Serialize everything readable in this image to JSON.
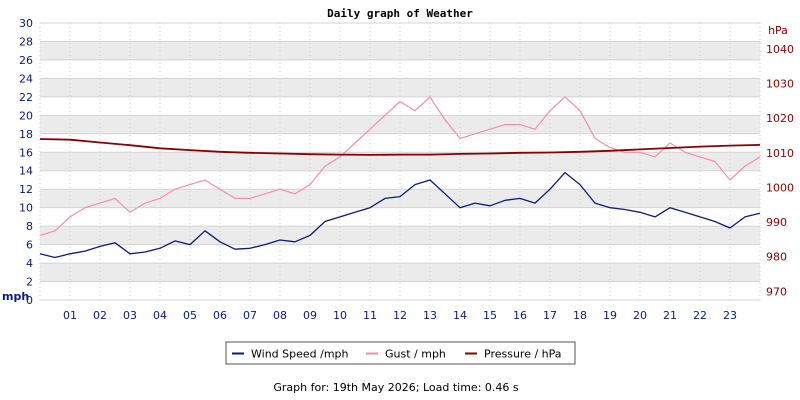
{
  "chart_data": {
    "type": "line",
    "title": "Daily graph of Weather",
    "footer": "Graph for: 19th May 2026; Load time: 0.46 s",
    "left_axis": {
      "unit_label": "mph",
      "min": 0,
      "max": 30,
      "step": 2,
      "ticks": [
        "0",
        "2",
        "4",
        "6",
        "8",
        "10",
        "12",
        "14",
        "16",
        "18",
        "20",
        "22",
        "24",
        "26",
        "28",
        "30"
      ]
    },
    "right_axis": {
      "unit_label": "hPa",
      "min": 967.5,
      "max": 1047.5,
      "ticks": [
        "970",
        "980",
        "990",
        "1000",
        "1010",
        "1020",
        "1030",
        "1040"
      ]
    },
    "x_axis": {
      "min": 0,
      "max": 24,
      "ticks": [
        "01",
        "02",
        "03",
        "04",
        "05",
        "06",
        "07",
        "08",
        "09",
        "10",
        "11",
        "12",
        "13",
        "14",
        "15",
        "16",
        "17",
        "18",
        "19",
        "20",
        "21",
        "22",
        "23"
      ]
    },
    "grid": true,
    "legend_position": "bottom",
    "colors": {
      "wind": "#0b1a7e",
      "gust": "#f48cb0",
      "pressure": "#8b0000",
      "axis_left": "#0b1a7e",
      "axis_right": "#8b0000",
      "band": "#ebebeb"
    },
    "series": [
      {
        "name": "Wind Speed /mph",
        "axis": "left",
        "color": "#0b1a7e",
        "x": [
          0,
          0.5,
          1,
          1.5,
          2,
          2.5,
          3,
          3.5,
          4,
          4.5,
          5,
          5.5,
          6,
          6.5,
          7,
          7.5,
          8,
          8.5,
          9,
          9.5,
          10,
          10.5,
          11,
          11.5,
          12,
          12.5,
          13,
          13.5,
          14,
          14.5,
          15,
          15.5,
          16,
          16.5,
          17,
          17.5,
          18,
          18.5,
          19,
          19.5,
          20,
          20.5,
          21,
          21.5,
          22,
          22.5,
          23,
          23.5,
          24
        ],
        "values": [
          5.0,
          4.6,
          5.0,
          5.3,
          5.8,
          6.2,
          5.0,
          5.2,
          5.6,
          6.4,
          6.0,
          7.5,
          6.3,
          5.5,
          5.6,
          6.0,
          6.5,
          6.3,
          7.0,
          8.5,
          9.0,
          9.5,
          10.0,
          11.0,
          11.2,
          12.5,
          13.0,
          11.5,
          10.0,
          10.5,
          10.2,
          10.8,
          11.0,
          10.5,
          12.0,
          13.8,
          12.5,
          10.5,
          10.0,
          9.8,
          9.5,
          9.0,
          10.0,
          9.5,
          9.0,
          8.5,
          7.8,
          9.0,
          9.4
        ]
      },
      {
        "name": "Gust / mph",
        "axis": "left",
        "color": "#f48cb0",
        "x": [
          0,
          0.5,
          1,
          1.5,
          2,
          2.5,
          3,
          3.5,
          4,
          4.5,
          5,
          5.5,
          6,
          6.5,
          7,
          7.5,
          8,
          8.5,
          9,
          9.5,
          10,
          10.5,
          11,
          11.5,
          12,
          12.5,
          13,
          13.5,
          14,
          14.5,
          15,
          15.5,
          16,
          16.5,
          17,
          17.5,
          18,
          18.5,
          19,
          19.5,
          20,
          20.5,
          21,
          21.5,
          22,
          22.5,
          23,
          23.5,
          24
        ],
        "values": [
          7.0,
          7.5,
          9.0,
          10.0,
          10.5,
          11.0,
          9.5,
          10.5,
          11.0,
          12.0,
          12.5,
          13.0,
          12.0,
          11.0,
          11.0,
          11.5,
          12.0,
          11.5,
          12.5,
          14.5,
          15.5,
          17.0,
          18.5,
          20.0,
          21.5,
          20.5,
          22.0,
          19.5,
          17.5,
          18.0,
          18.5,
          19.0,
          19.0,
          18.5,
          20.5,
          22.0,
          20.5,
          17.5,
          16.5,
          16.0,
          16.0,
          15.5,
          17.0,
          16.0,
          15.5,
          15.0,
          13.0,
          14.5,
          15.5
        ]
      },
      {
        "name": "Pressure / hPa",
        "axis": "right",
        "color": "#8b0000",
        "x": [
          0,
          1,
          2,
          3,
          4,
          5,
          6,
          7,
          8,
          9,
          10,
          11,
          12,
          13,
          14,
          15,
          16,
          17,
          18,
          19,
          20,
          21,
          22,
          23,
          24
        ],
        "values": [
          1014.0,
          1013.8,
          1013.0,
          1012.2,
          1011.3,
          1010.8,
          1010.3,
          1010.0,
          1009.8,
          1009.6,
          1009.5,
          1009.4,
          1009.5,
          1009.5,
          1009.7,
          1009.8,
          1010.0,
          1010.1,
          1010.3,
          1010.6,
          1011.0,
          1011.4,
          1011.8,
          1012.1,
          1012.3
        ]
      }
    ]
  }
}
